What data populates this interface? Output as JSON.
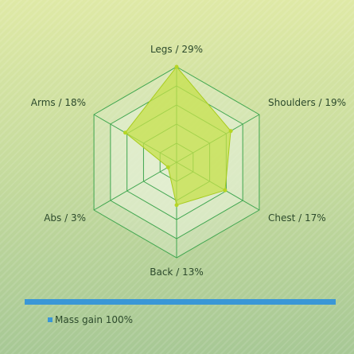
{
  "chart_data": {
    "type": "radar",
    "axes": [
      {
        "label": "Legs / 29%",
        "value": 29
      },
      {
        "label": "Shoulders / 19%",
        "value": 19
      },
      {
        "label": "Chest / 17%",
        "value": 17
      },
      {
        "label": "Back / 13%",
        "value": 13
      },
      {
        "label": "Abs / 3%",
        "value": 3
      },
      {
        "label": "Arms / 18%",
        "value": 18
      }
    ],
    "rmax": 29,
    "rings": 5,
    "series": [
      {
        "name": "Mass gain 100%",
        "values": [
          29,
          19,
          17,
          13,
          3,
          18
        ]
      }
    ],
    "colors": {
      "fill": "#c5e04a",
      "stroke": "#a8cc1e",
      "point": "#b5d625",
      "grid": "#3fa64f",
      "ring_fill": "#e6f0d6",
      "legend_swatch": "#3a97d6",
      "separator": "#3a97d6"
    },
    "legend_placement": "bottom-left"
  }
}
